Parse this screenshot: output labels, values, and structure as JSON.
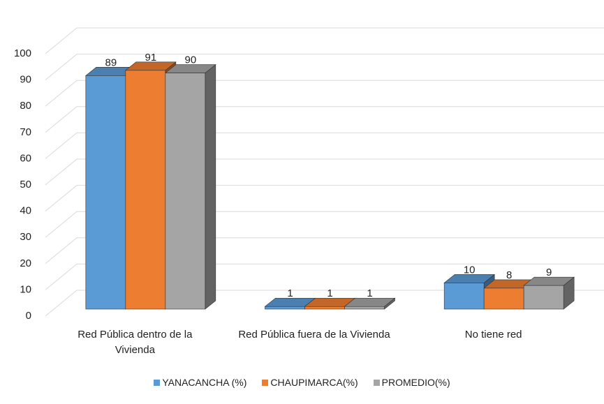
{
  "chart_data": {
    "type": "bar3d",
    "categories": [
      "Red Pública dentro de la Vivienda",
      "Red Pública fuera de la Vivienda",
      "No tiene red"
    ],
    "series": [
      {
        "name": "YANACANCHA (%)",
        "color": "#5b9bd5",
        "values": [
          89,
          1,
          10
        ]
      },
      {
        "name": "CHAUPIMARCA(%)",
        "color": "#ed7d31",
        "values": [
          91,
          1,
          8
        ]
      },
      {
        "name": "PROMEDIO(%)",
        "color": "#a5a5a5",
        "values": [
          90,
          1,
          9
        ]
      }
    ],
    "ylim": [
      0,
      100
    ],
    "yticks": [
      0,
      10,
      20,
      30,
      40,
      50,
      60,
      70,
      80,
      90,
      100
    ],
    "grid": true,
    "legend": "bottom"
  }
}
